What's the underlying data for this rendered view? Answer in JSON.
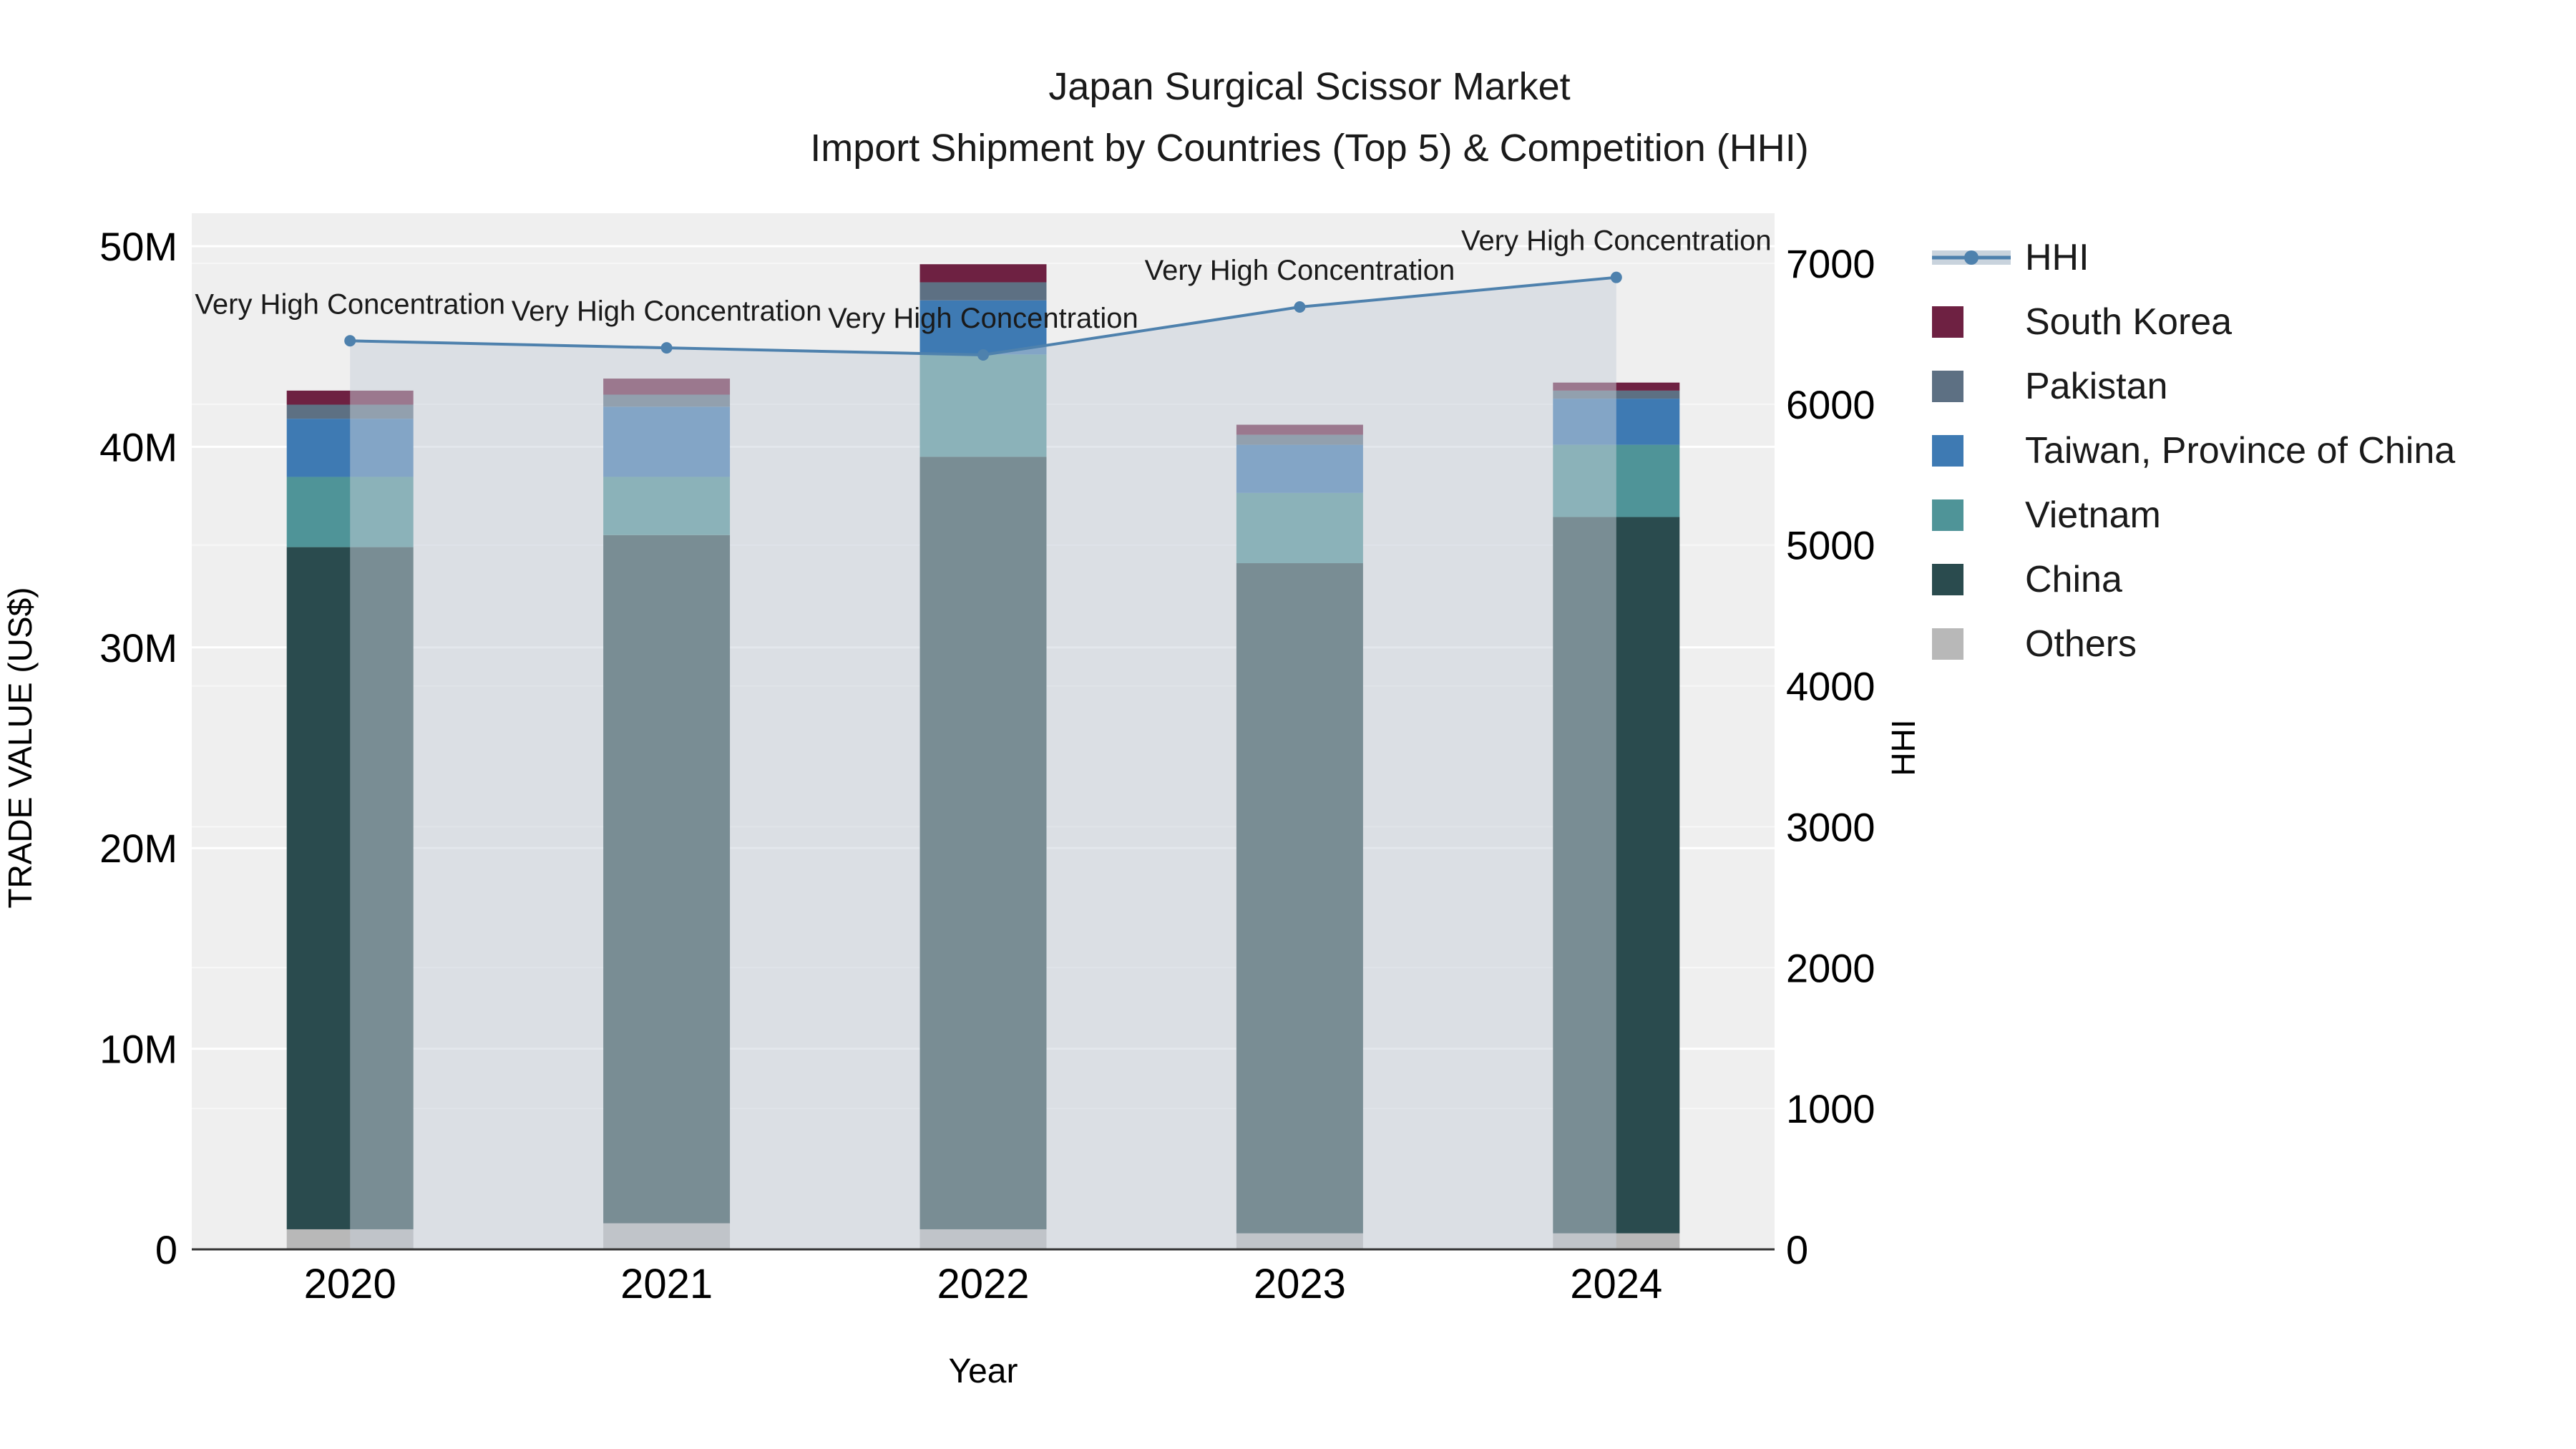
{
  "title": {
    "line1": "Japan Surgical Scissor Market",
    "line2": "Import Shipment by Countries (Top 5) & Competition (HHI)"
  },
  "chart_data": {
    "type": "bar",
    "subtype": "stacked-bars-with-secondary-axis-line",
    "title": "Japan Surgical Scissor Market Import Shipment by Countries (Top 5) & Competition (HHI)",
    "categories": [
      "2020",
      "2021",
      "2022",
      "2023",
      "2024"
    ],
    "xlabel": "Year",
    "ylabel_left": "TRADE VALUE (US$)",
    "ylabel_right": "HHI",
    "grid": true,
    "legend_position": "right",
    "y_left": {
      "min": 0,
      "max": 50000000,
      "tick_values": [
        0,
        10000000,
        20000000,
        30000000,
        40000000,
        50000000
      ],
      "tick_labels": [
        "0",
        "10M",
        "20M",
        "30M",
        "40M",
        "50M"
      ]
    },
    "y_right": {
      "min": 0,
      "max": 7000,
      "tick_values": [
        0,
        1000,
        2000,
        3000,
        4000,
        5000,
        6000,
        7000
      ],
      "tick_labels": [
        "0",
        "1000",
        "2000",
        "3000",
        "4000",
        "5000",
        "6000",
        "7000"
      ]
    },
    "series": [
      {
        "name": "Others",
        "color": "#b8b8b8",
        "values": [
          1000000,
          1300000,
          1000000,
          800000,
          800000
        ]
      },
      {
        "name": "China",
        "color": "#2a4b4e",
        "values": [
          34000000,
          34300000,
          38500000,
          33400000,
          35700000
        ]
      },
      {
        "name": "Vietnam",
        "color": "#4f9498",
        "values": [
          3500000,
          2900000,
          5100000,
          3500000,
          3600000
        ]
      },
      {
        "name": "Taiwan, Province of China",
        "color": "#3e7ab3",
        "values": [
          2900000,
          3500000,
          2700000,
          2400000,
          2300000
        ]
      },
      {
        "name": "Pakistan",
        "color": "#5d7083",
        "values": [
          700000,
          600000,
          900000,
          500000,
          400000
        ]
      },
      {
        "name": "South Korea",
        "color": "#6e2142",
        "values": [
          700000,
          800000,
          900000,
          500000,
          400000
        ]
      }
    ],
    "line_series": {
      "name": "HHI",
      "axis": "right",
      "color": "#4e81ad",
      "area_color": "#c7d0da",
      "values": [
        6450,
        6400,
        6350,
        6690,
        6900
      ]
    },
    "annotations": [
      "Very High Concentration",
      "Very High Concentration",
      "Very High Concentration",
      "Very High Concentration",
      "Very High Concentration"
    ],
    "legend_items": [
      {
        "label": "HHI",
        "type": "line",
        "color": "#4e81ad",
        "band_color": "#c9d3dd"
      },
      {
        "label": "South Korea",
        "type": "swatch",
        "color": "#6e2142"
      },
      {
        "label": "Pakistan",
        "type": "swatch",
        "color": "#5d7083"
      },
      {
        "label": "Taiwan, Province of China",
        "type": "swatch",
        "color": "#3e7ab3"
      },
      {
        "label": "Vietnam",
        "type": "swatch",
        "color": "#4f9498"
      },
      {
        "label": "China",
        "type": "swatch",
        "color": "#2a4b4e"
      },
      {
        "label": "Others",
        "type": "swatch",
        "color": "#b8b8b8"
      }
    ]
  }
}
